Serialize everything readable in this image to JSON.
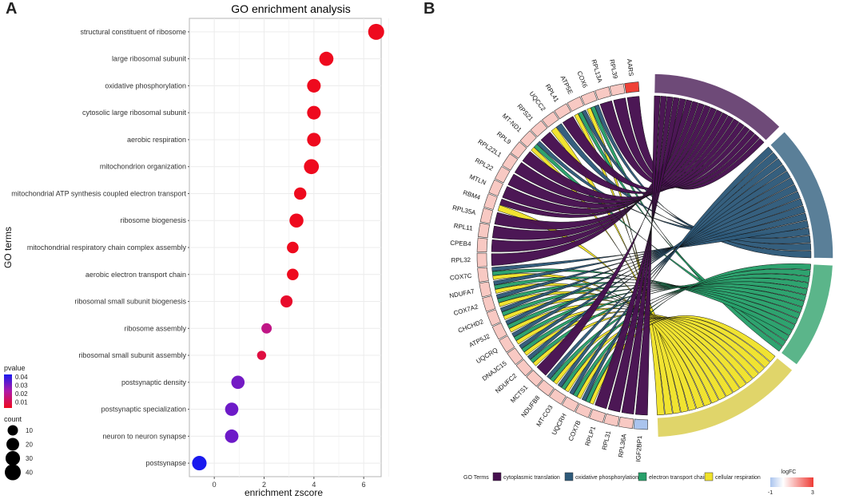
{
  "panel_a": {
    "letter": "A"
  },
  "panel_b": {
    "letter": "B"
  },
  "chart_data": [
    {
      "type": "scatter",
      "title": "GO enrichment analysis",
      "xlabel": "enrichment zscore",
      "ylabel": "GO terms",
      "xlim": [
        -1,
        6.7
      ],
      "xticks": [
        0,
        2,
        4,
        6
      ],
      "grid": true,
      "points": [
        {
          "term": "structural constituent of ribosome",
          "zscore": 6.5,
          "count": 40,
          "pvalue": 0.001
        },
        {
          "term": "large ribosomal subunit",
          "zscore": 4.5,
          "count": 28,
          "pvalue": 0.001
        },
        {
          "term": "oxidative phosphorylation",
          "zscore": 4.0,
          "count": 25,
          "pvalue": 0.002
        },
        {
          "term": "cytosolic large ribosomal subunit",
          "zscore": 4.0,
          "count": 25,
          "pvalue": 0.002
        },
        {
          "term": "aerobic respiration",
          "zscore": 4.0,
          "count": 25,
          "pvalue": 0.002
        },
        {
          "term": "mitochondrion organization",
          "zscore": 3.9,
          "count": 33,
          "pvalue": 0.002
        },
        {
          "term": "mitochondrial ATP synthesis coupled electron transport",
          "zscore": 3.45,
          "count": 18,
          "pvalue": 0.003
        },
        {
          "term": "ribosome biogenesis",
          "zscore": 3.3,
          "count": 27,
          "pvalue": 0.003
        },
        {
          "term": "mitochondrial respiratory chain complex assembly",
          "zscore": 3.15,
          "count": 15,
          "pvalue": 0.005
        },
        {
          "term": "aerobic electron transport chain",
          "zscore": 3.15,
          "count": 15,
          "pvalue": 0.004
        },
        {
          "term": "ribosomal small subunit biogenesis",
          "zscore": 2.9,
          "count": 17,
          "pvalue": 0.007
        },
        {
          "term": "ribosome assembly",
          "zscore": 2.1,
          "count": 10,
          "pvalue": 0.02
        },
        {
          "term": "ribosomal small subunit assembly",
          "zscore": 1.9,
          "count": 6,
          "pvalue": 0.01
        },
        {
          "term": "postsynaptic density",
          "zscore": 0.95,
          "count": 23,
          "pvalue": 0.033
        },
        {
          "term": "postsynaptic specialization",
          "zscore": 0.7,
          "count": 23,
          "pvalue": 0.034
        },
        {
          "term": "neuron to neuron synapse",
          "zscore": 0.7,
          "count": 24,
          "pvalue": 0.034
        },
        {
          "term": "postsynapse",
          "zscore": -0.6,
          "count": 30,
          "pvalue": 0.045
        }
      ],
      "legend_pvalue": {
        "title": "pvalue",
        "labels": [
          "0.04",
          "0.03",
          "0.02",
          "0.01"
        ],
        "low_color": "#ee0a1e",
        "high_color": "#1a1aee"
      },
      "legend_count": {
        "title": "count",
        "labels": [
          "10",
          "20",
          "30",
          "40"
        ],
        "values": [
          10,
          20,
          30,
          40
        ]
      },
      "point_color_scale": {
        "mid": "#b01aa8"
      }
    },
    {
      "type": "chord",
      "genes": [
        "AARS",
        "RPL39",
        "RPL13A",
        "COX6",
        "ATP5E",
        "RPL41",
        "UQCC2",
        "RPS21",
        "MT-ND1",
        "RPL9",
        "RPL22L1",
        "RPL22",
        "MTLN",
        "RBM4",
        "RPL35A",
        "RPL11",
        "CPEB4",
        "RPL32",
        "COX7C",
        "NDUFA7",
        "COX7A2",
        "CHCHD2",
        "ATP5J2",
        "UQCRQ",
        "DNAJC15",
        "NDUFC2",
        "MCTS1",
        "NDUFB8",
        "MT-CO3",
        "UQCRH",
        "COX7B",
        "RPLP1",
        "RPL31",
        "RPL36A",
        "IGF2BP1"
      ],
      "logfc": [
        3,
        1,
        1,
        1,
        1,
        1,
        1,
        1,
        1,
        1,
        1,
        1,
        1,
        1,
        1,
        1,
        1,
        1,
        1,
        1,
        1,
        1,
        1,
        1,
        1,
        1,
        1,
        1,
        1,
        1,
        1,
        1,
        1,
        1,
        -1
      ],
      "memberships": {
        "cytoplasmic translation": [
          "AARS",
          "RPL39",
          "RPL13A",
          "RPL41",
          "RPS21",
          "RPL9",
          "RPL22L1",
          "RPL22",
          "MTLN",
          "RBM4",
          "RPL35A",
          "RPL11",
          "CPEB4",
          "RPL32",
          "MCTS1",
          "RPLP1",
          "RPL31",
          "RPL36A",
          "IGF2BP1"
        ],
        "oxidative phosphorylation": [
          "COX6",
          "ATP5E",
          "UQCC2",
          "MT-ND1",
          "COX7C",
          "NDUFA7",
          "COX7A2",
          "CHCHD2",
          "ATP5J2",
          "UQCRQ",
          "DNAJC15",
          "NDUFC2",
          "NDUFB8",
          "MT-CO3",
          "UQCRH",
          "COX7B"
        ],
        "electron transport chain": [
          "COX6",
          "ATP5E",
          "MT-ND1",
          "COX7C",
          "NDUFA7",
          "COX7A2",
          "CHCHD2",
          "ATP5J2",
          "UQCRQ",
          "DNAJC15",
          "NDUFC2",
          "NDUFB8",
          "MT-CO3",
          "UQCRH",
          "COX7B"
        ],
        "cellular respiration": [
          "COX6",
          "ATP5E",
          "UQCC2",
          "MT-ND1",
          "RBM4",
          "COX7C",
          "NDUFA7",
          "COX7A2",
          "CHCHD2",
          "ATP5J2",
          "UQCRQ",
          "DNAJC15",
          "NDUFC2",
          "NDUFB8",
          "MT-CO3",
          "UQCRH",
          "COX7B"
        ]
      },
      "terms": [
        {
          "name": "cytoplasmic translation",
          "color": "#46104f",
          "outer": "#6e4a78"
        },
        {
          "name": "oxidative phosphorylation",
          "color": "#2e5a7a",
          "outer": "#5a7f98"
        },
        {
          "name": "electron transport chain",
          "color": "#27a06a",
          "outer": "#5bb58a"
        },
        {
          "name": "cellular respiration",
          "color": "#f0e22a",
          "outer": "#e0d56a"
        }
      ],
      "legend_terms_title": "GO Terms",
      "logfc_legend": {
        "title": "logFC",
        "min_label": "-1",
        "max_label": "3",
        "low_color": "#aac4ee",
        "high_color": "#ee3c36"
      }
    }
  ]
}
